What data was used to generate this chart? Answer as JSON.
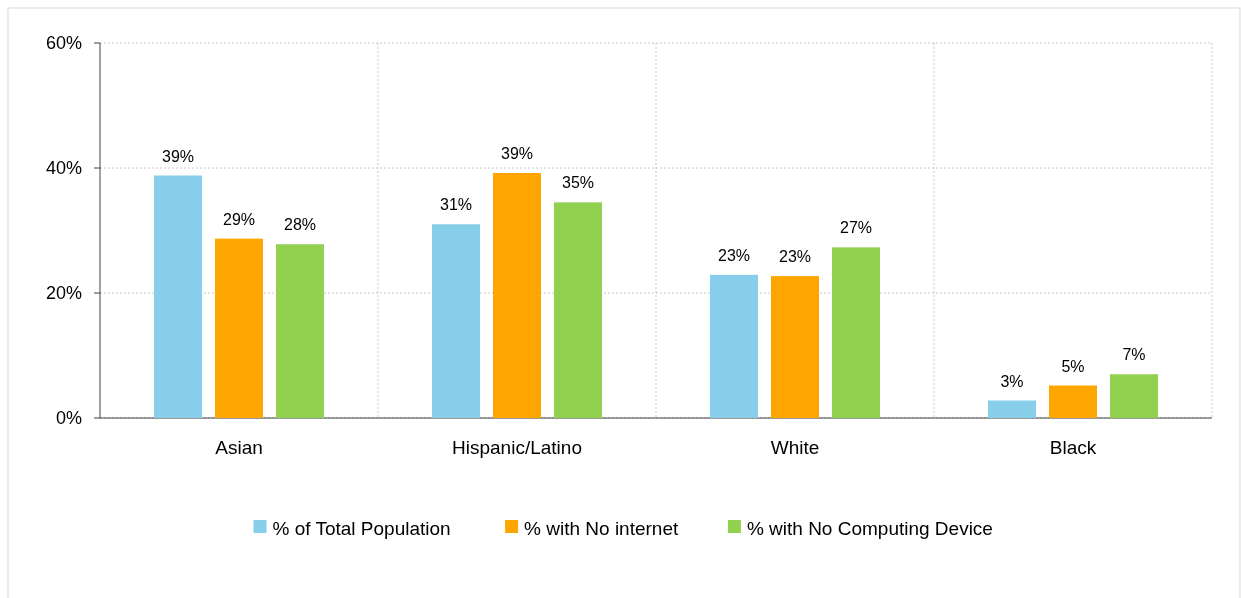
{
  "chart_data": {
    "type": "bar",
    "categories": [
      "Asian",
      "Hispanic/Latino",
      "White",
      "Black"
    ],
    "series": [
      {
        "name": "% of Total Population",
        "color": "#87ceeb",
        "values": [
          38.8,
          31,
          22.9,
          2.8
        ],
        "value_labels": [
          "39%",
          "31%",
          "23%",
          "3%"
        ]
      },
      {
        "name": "% with No internet",
        "color": "#ffa500",
        "values": [
          28.7,
          39.2,
          22.7,
          5.2
        ],
        "value_labels": [
          "29%",
          "39%",
          "23%",
          "5%"
        ]
      },
      {
        "name": "% with No Computing Device",
        "color": "#92d050",
        "values": [
          27.8,
          34.5,
          27.3,
          7
        ],
        "value_labels": [
          "28%",
          "35%",
          "27%",
          "7%"
        ]
      }
    ],
    "ylim": [
      0,
      60
    ],
    "yticks": [
      {
        "value": 0,
        "label": "0%"
      },
      {
        "value": 20,
        "label": "20%"
      },
      {
        "value": 40,
        "label": "40%"
      },
      {
        "value": 60,
        "label": "60%"
      }
    ],
    "grid": true,
    "legend": "bottom"
  }
}
